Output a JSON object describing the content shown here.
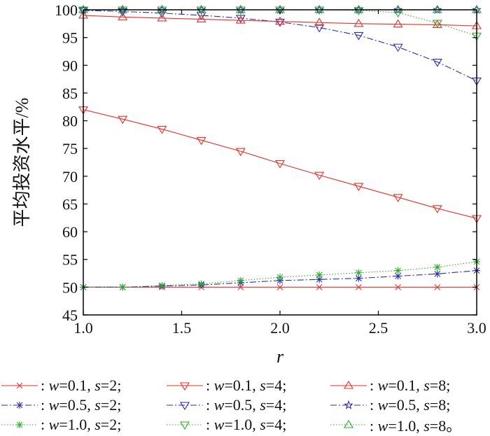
{
  "chart_data": {
    "type": "line",
    "title": "",
    "xlabel": "r",
    "ylabel": "平均投资水平/%",
    "xlim": [
      1.0,
      3.0
    ],
    "ylim": [
      45,
      100
    ],
    "xticks": [
      "1.0",
      "1.5",
      "2.0",
      "2.5",
      "3.0"
    ],
    "yticks": [
      "45",
      "50",
      "55",
      "60",
      "65",
      "70",
      "75",
      "80",
      "85",
      "90",
      "95",
      "100"
    ],
    "grid": false,
    "legend_position": "bottom",
    "x": [
      1.0,
      1.2,
      1.4,
      1.6,
      1.8,
      2.0,
      2.2,
      2.4,
      2.6,
      2.8,
      3.0
    ],
    "series": [
      {
        "name": ": w=0.1, s=2;",
        "marker": "x",
        "color": "#e8312a",
        "dash": "solid",
        "values": [
          50,
          50,
          50,
          50,
          50,
          50,
          50,
          50,
          50,
          50,
          50
        ]
      },
      {
        "name": ": w=0.5, s=2;",
        "marker": "asterisk",
        "color": "#2a2fa8",
        "dash": "dashdot",
        "values": [
          50,
          50,
          50.2,
          50.4,
          50.8,
          51.2,
          51.4,
          51.6,
          52.0,
          52.4,
          53.0
        ]
      },
      {
        "name": ": w=1.0, s=2;",
        "marker": "asterisk",
        "color": "#2fa82f",
        "dash": "dotted",
        "values": [
          50,
          50,
          50.3,
          50.6,
          51.2,
          51.8,
          52.2,
          52.6,
          53.0,
          53.6,
          54.6
        ]
      },
      {
        "name": ": w=0.1, s=4;",
        "marker": "triangle-down",
        "color": "#e8312a",
        "dash": "solid",
        "values": [
          82,
          80.3,
          78.5,
          76.5,
          74.5,
          72.3,
          70.2,
          68.2,
          66.2,
          64.2,
          62.4
        ]
      },
      {
        "name": ": w=0.5, s=4;",
        "marker": "triangle-down",
        "color": "#2a2fa8",
        "dash": "dashdot",
        "values": [
          99.9,
          99.7,
          99.4,
          99.0,
          98.5,
          97.8,
          96.8,
          95.4,
          93.3,
          90.6,
          87.2
        ]
      },
      {
        "name": ": w=1.0, s=4;",
        "marker": "triangle-down",
        "color": "#2fa82f",
        "dash": "dotted",
        "values": [
          100,
          100,
          100,
          100,
          100,
          100,
          100,
          99.9,
          99.5,
          97.6,
          95.3
        ]
      },
      {
        "name": ": w=0.1, s=8;",
        "marker": "triangle-up",
        "color": "#e8312a",
        "dash": "solid",
        "values": [
          99.0,
          98.7,
          98.5,
          98.3,
          98.1,
          97.9,
          97.7,
          97.5,
          97.4,
          97.3,
          97.1
        ]
      },
      {
        "name": ": w=0.5, s=8;",
        "marker": "star",
        "color": "#2a2fa8",
        "dash": "dashdot",
        "values": [
          100,
          100,
          100,
          100,
          100,
          100,
          100,
          100,
          100,
          100,
          100
        ]
      },
      {
        "name": ": w=1.0, s=8。",
        "marker": "triangle-up",
        "color": "#2fa82f",
        "dash": "dotted",
        "values": [
          100,
          100,
          100,
          100,
          100,
          100,
          100,
          100,
          100,
          100,
          100
        ]
      }
    ]
  },
  "legend": [
    {
      "prefix": ": ",
      "w": "0.1",
      "s": "2",
      "end": ";"
    },
    {
      "prefix": ": ",
      "w": "0.1",
      "s": "4",
      "end": ";"
    },
    {
      "prefix": ": ",
      "w": "0.1",
      "s": "8",
      "end": ";"
    },
    {
      "prefix": ": ",
      "w": "0.5",
      "s": "2",
      "end": ";"
    },
    {
      "prefix": ": ",
      "w": "0.5",
      "s": "4",
      "end": ";"
    },
    {
      "prefix": ": ",
      "w": "0.5",
      "s": "8",
      "end": ";"
    },
    {
      "prefix": ": ",
      "w": "1.0",
      "s": "2",
      "end": ";"
    },
    {
      "prefix": ": ",
      "w": "1.0",
      "s": "4",
      "end": ";"
    },
    {
      "prefix": ": ",
      "w": "1.0",
      "s": "8",
      "end": "。"
    }
  ],
  "legend_labels": {
    "w": "w",
    "s": "s",
    "eq": "="
  }
}
